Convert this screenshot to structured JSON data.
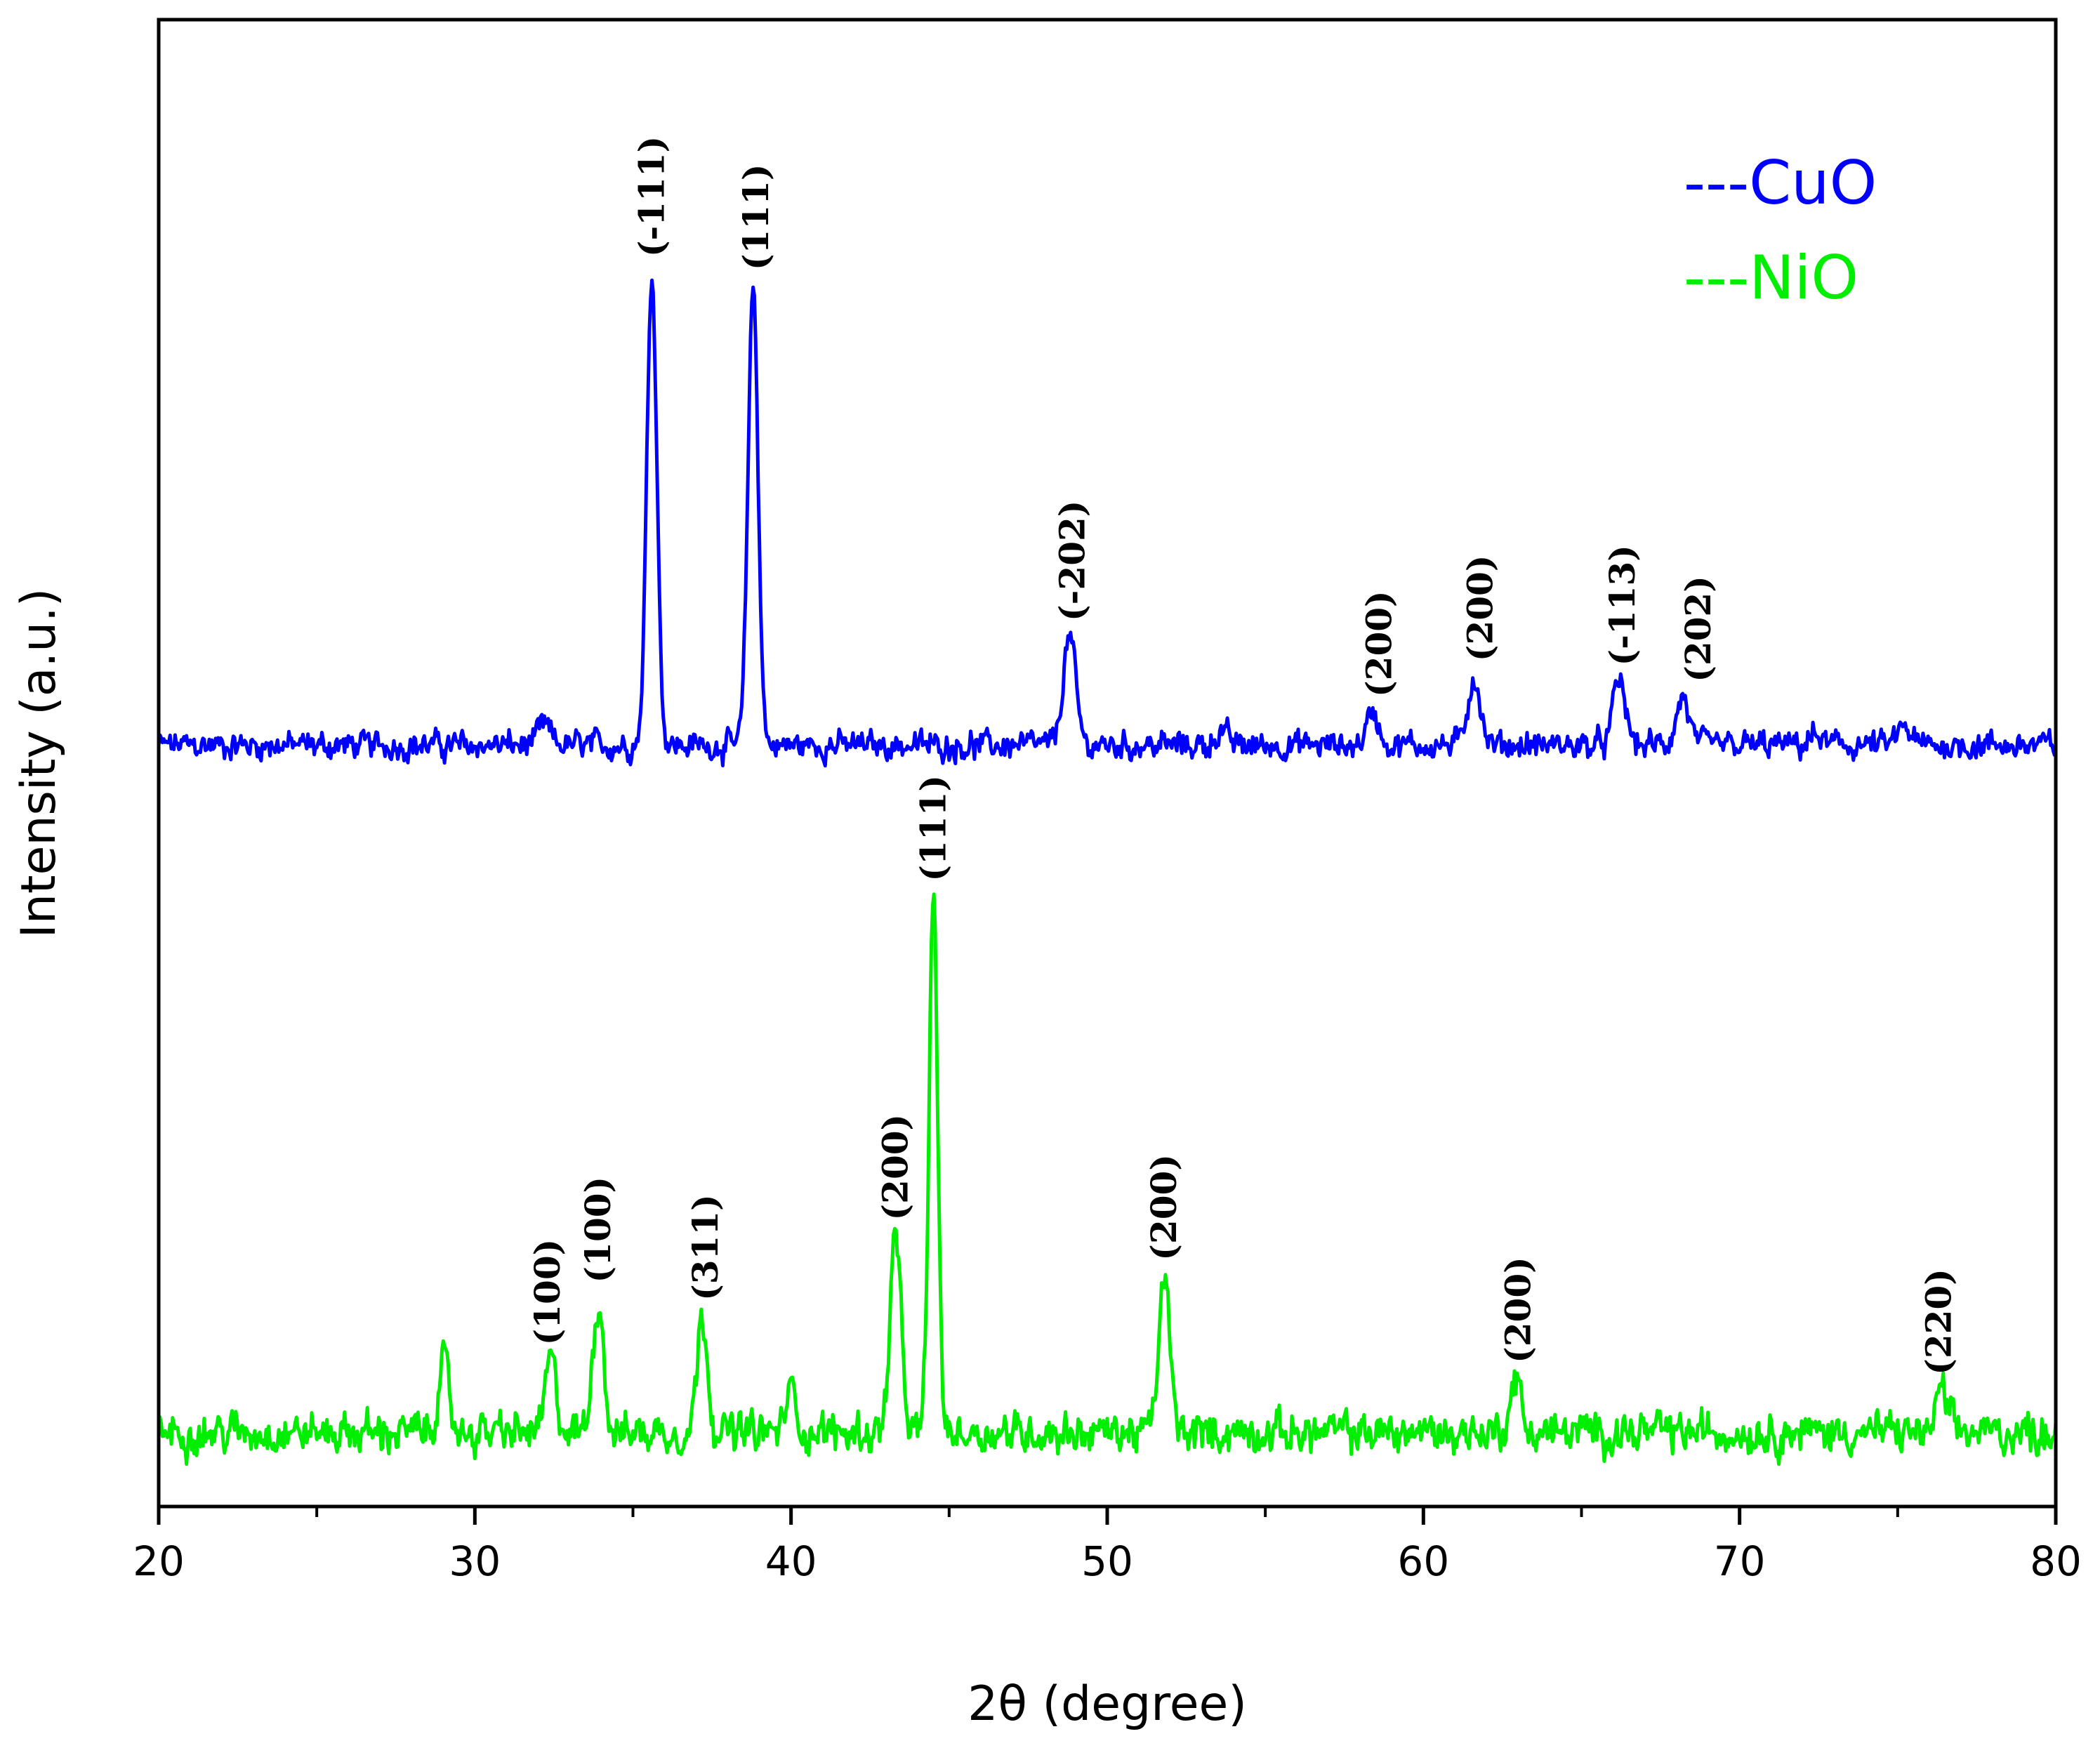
{
  "chart_data": {
    "type": "line",
    "xlabel": "2θ (degree)",
    "ylabel": "Intensity (a.u.)",
    "xlim": [
      20,
      80
    ],
    "ylim": [
      0,
      100
    ],
    "x_ticks": [
      "20",
      "30",
      "40",
      "50",
      "60",
      "70",
      "80"
    ],
    "grid": false,
    "legend": {
      "placement": "top-right",
      "entries": [
        {
          "label": "---CuO",
          "color": "#0000ff"
        },
        {
          "label": "---NiO",
          "color": "#00ee00"
        }
      ]
    },
    "series": [
      {
        "name": "CuO",
        "color": "#0000ff",
        "baseline": 51.2,
        "peaks": [
          {
            "x": 32.2,
            "y": 52.5
          },
          {
            "x": 35.6,
            "y": 83.0
          },
          {
            "x": 38.8,
            "y": 82.1
          },
          {
            "x": 48.8,
            "y": 58.5
          },
          {
            "x": 53.6,
            "y": 52.1
          },
          {
            "x": 58.4,
            "y": 53.4
          },
          {
            "x": 61.6,
            "y": 55.8
          },
          {
            "x": 66.2,
            "y": 55.5
          },
          {
            "x": 68.2,
            "y": 54.4
          },
          {
            "x": 72.4,
            "y": 51.8
          },
          {
            "x": 75.2,
            "y": 52.4
          }
        ]
      },
      {
        "name": "NiO",
        "color": "#00ee00",
        "baseline": 5.0,
        "peaks": [
          {
            "x": 29.0,
            "y": 9.5
          },
          {
            "x": 32.4,
            "y": 9.8
          },
          {
            "x": 33.9,
            "y": 14.0
          },
          {
            "x": 37.2,
            "y": 12.8
          },
          {
            "x": 40.0,
            "y": 7.8
          },
          {
            "x": 43.3,
            "y": 18.2
          },
          {
            "x": 44.5,
            "y": 41.0
          },
          {
            "x": 51.8,
            "y": 15.5
          },
          {
            "x": 62.9,
            "y": 8.6
          },
          {
            "x": 76.4,
            "y": 7.8
          }
        ]
      }
    ],
    "annotations": [
      {
        "text": "(-111)",
        "x": 35.6,
        "series": "CuO"
      },
      {
        "text": "(111)",
        "x": 38.9,
        "series": "CuO"
      },
      {
        "text": "(-202)",
        "x": 48.9,
        "series": "CuO"
      },
      {
        "text": "(200)",
        "x": 58.6,
        "series": "CuO"
      },
      {
        "text": "(200)",
        "x": 61.8,
        "series": "CuO"
      },
      {
        "text": "(-113)",
        "x": 66.3,
        "series": "CuO"
      },
      {
        "text": "(202)",
        "x": 68.7,
        "series": "CuO"
      },
      {
        "text": "(100)",
        "x": 32.3,
        "series": "NiO"
      },
      {
        "text": "(100)",
        "x": 33.9,
        "series": "NiO"
      },
      {
        "text": "(311)",
        "x": 37.3,
        "series": "NiO"
      },
      {
        "text": "(200)",
        "x": 43.3,
        "series": "NiO"
      },
      {
        "text": "(111)",
        "x": 44.5,
        "series": "NiO"
      },
      {
        "text": "(200)",
        "x": 51.8,
        "series": "NiO"
      },
      {
        "text": "(200)",
        "x": 63.0,
        "series": "NiO"
      },
      {
        "text": "(220)",
        "x": 76.3,
        "series": "NiO"
      }
    ]
  }
}
